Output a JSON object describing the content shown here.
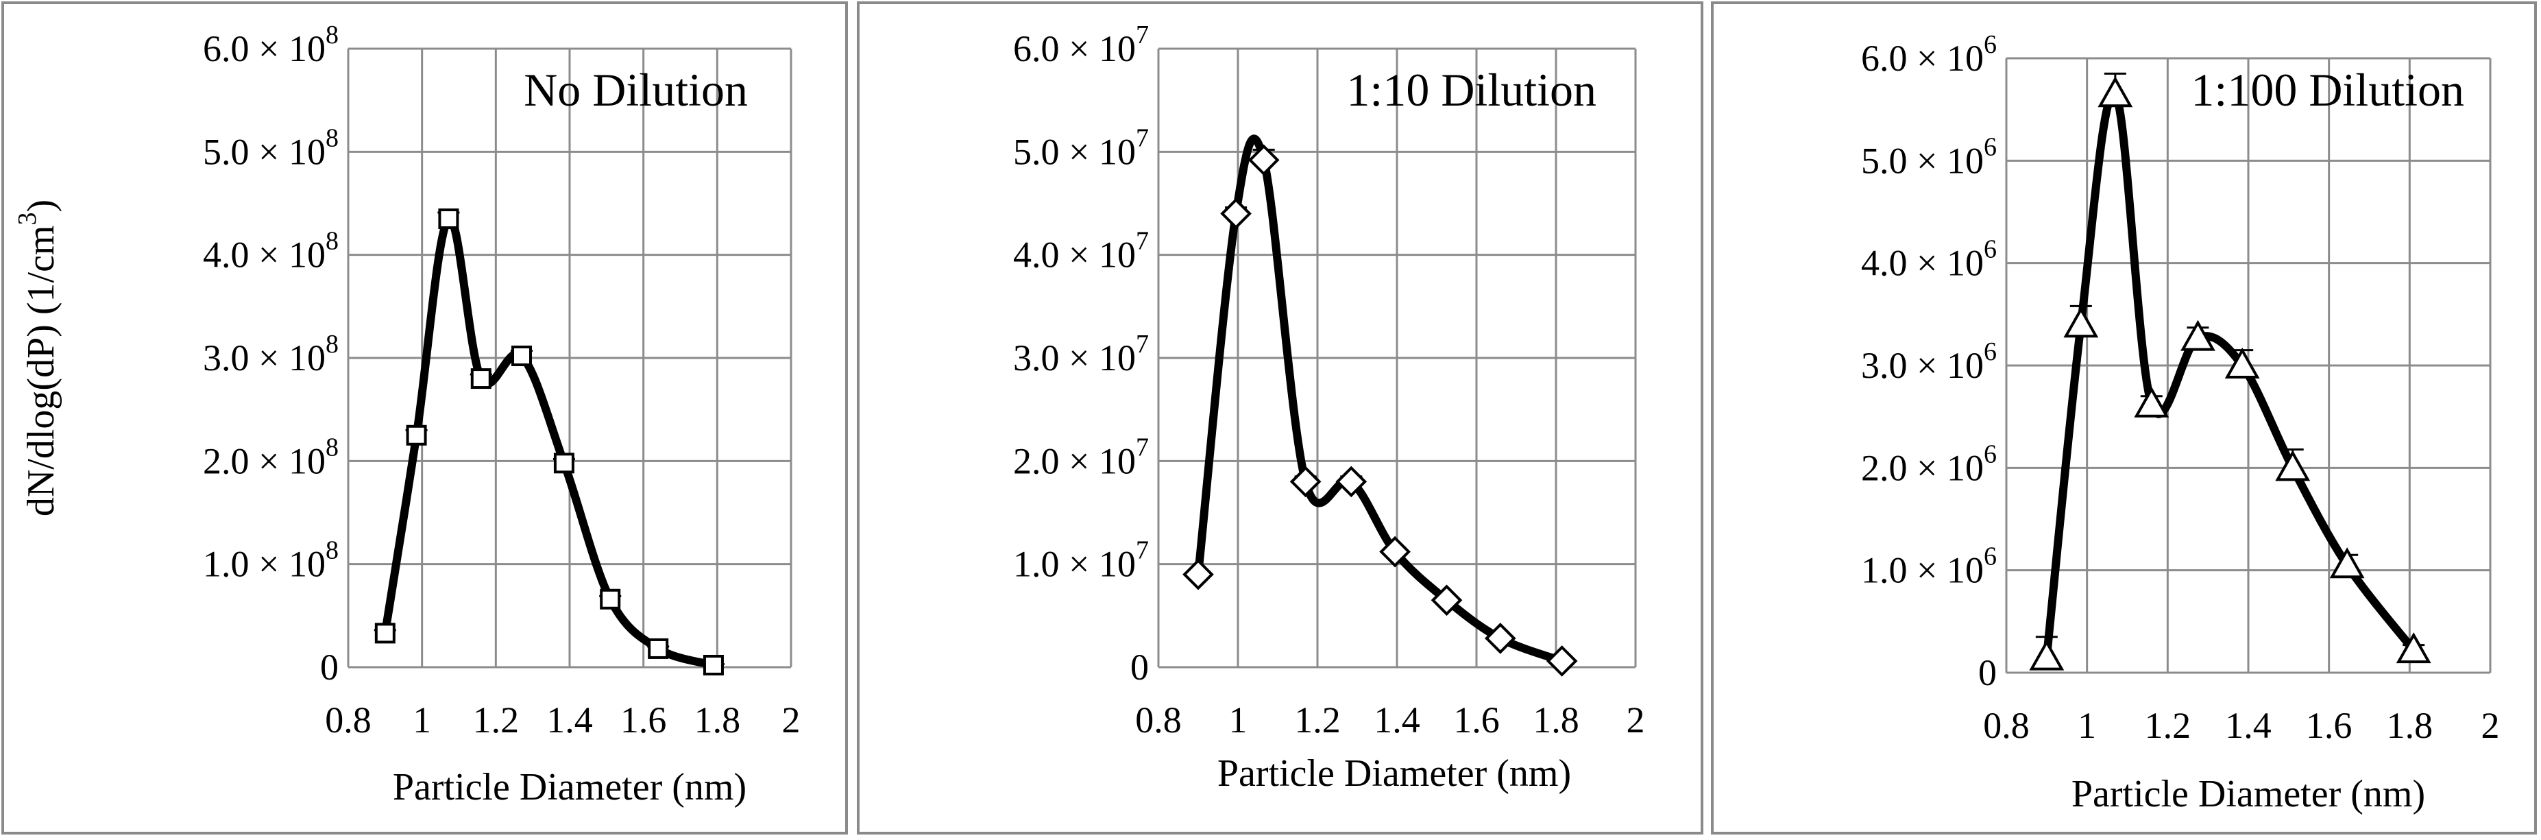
{
  "chart_data": [
    {
      "type": "line",
      "title": "No Dilution",
      "xlabel": "Particle Diameter (nm)",
      "ylabel_main": "dN/dlog(dP) (1/cm",
      "ylabel_exp": "3",
      "ylabel_end": ")",
      "xlim": [
        0.8,
        2.0
      ],
      "xticks": [
        0.8,
        1,
        1.2,
        1.4,
        1.6,
        1.8,
        2
      ],
      "xtick_labels": [
        "0.8",
        "1",
        "1.2",
        "1.4",
        "1.6",
        "1.8",
        "2"
      ],
      "ylim": [
        0,
        6
      ],
      "yticks": [
        0,
        1,
        2,
        3,
        4,
        5,
        6
      ],
      "ytick_labels": [
        "0",
        "1.0 × 10",
        "2.0 × 10",
        "3.0 × 10",
        "4.0 × 10",
        "5.0 × 10",
        "6.0 × 10"
      ],
      "y_exponent": "8",
      "marker": "square",
      "grid": true,
      "x": [
        0.9,
        0.985,
        1.072,
        1.16,
        1.27,
        1.385,
        1.51,
        1.64,
        1.79
      ],
      "y": [
        0.33,
        2.25,
        4.35,
        2.8,
        3.02,
        1.98,
        0.66,
        0.18,
        0.02
      ],
      "error": [
        0.03,
        0.05,
        0.06,
        0.04,
        0.05,
        0.04,
        0.03,
        0.02,
        0.01
      ]
    },
    {
      "type": "line",
      "title": "1:10 Dilution",
      "xlabel": "Particle Diameter (nm)",
      "xlim": [
        0.8,
        2.0
      ],
      "xticks": [
        0.8,
        1,
        1.2,
        1.4,
        1.6,
        1.8,
        2
      ],
      "xtick_labels": [
        "0.8",
        "1",
        "1.2",
        "1.4",
        "1.6",
        "1.8",
        "2"
      ],
      "ylim": [
        0,
        6
      ],
      "yticks": [
        0,
        1,
        2,
        3,
        4,
        5,
        6
      ],
      "ytick_labels": [
        "0",
        "1.0 × 10",
        "2.0 × 10",
        "3.0 × 10",
        "4.0 × 10",
        "5.0 × 10",
        "6.0 × 10"
      ],
      "y_exponent": "7",
      "marker": "diamond",
      "grid": true,
      "x": [
        0.9,
        0.995,
        1.065,
        1.17,
        1.285,
        1.395,
        1.525,
        1.66,
        1.815
      ],
      "y": [
        0.9,
        4.4,
        4.92,
        1.8,
        1.8,
        1.12,
        0.65,
        0.28,
        0.06
      ],
      "error": [
        0.03,
        0.06,
        0.1,
        0.05,
        0.05,
        0.04,
        0.03,
        0.02,
        0.01
      ]
    },
    {
      "type": "line",
      "title": "1:100 Dilution",
      "xlabel": "Particle Diameter (nm)",
      "xlim": [
        0.8,
        2.0
      ],
      "xticks": [
        0.8,
        1,
        1.2,
        1.4,
        1.6,
        1.8,
        2
      ],
      "xtick_labels": [
        "0.8",
        "1",
        "1.2",
        "1.4",
        "1.6",
        "1.8",
        "2"
      ],
      "ylim": [
        0,
        6
      ],
      "yticks": [
        0,
        1,
        2,
        3,
        4,
        5,
        6
      ],
      "ytick_labels": [
        "0",
        "1.0 × 10",
        "2.0 × 10",
        "3.0 × 10",
        "4.0 × 10",
        "5.0 × 10",
        "6.0 × 10"
      ],
      "y_exponent": "6",
      "marker": "triangle",
      "grid": true,
      "x": [
        0.9,
        0.985,
        1.07,
        1.16,
        1.275,
        1.385,
        1.51,
        1.645,
        1.81
      ],
      "y": [
        0.15,
        3.4,
        5.65,
        2.62,
        3.27,
        3.0,
        2.0,
        1.05,
        0.22
      ],
      "error": [
        0.2,
        0.18,
        0.2,
        0.08,
        0.1,
        0.15,
        0.18,
        0.1,
        0.05
      ]
    }
  ]
}
